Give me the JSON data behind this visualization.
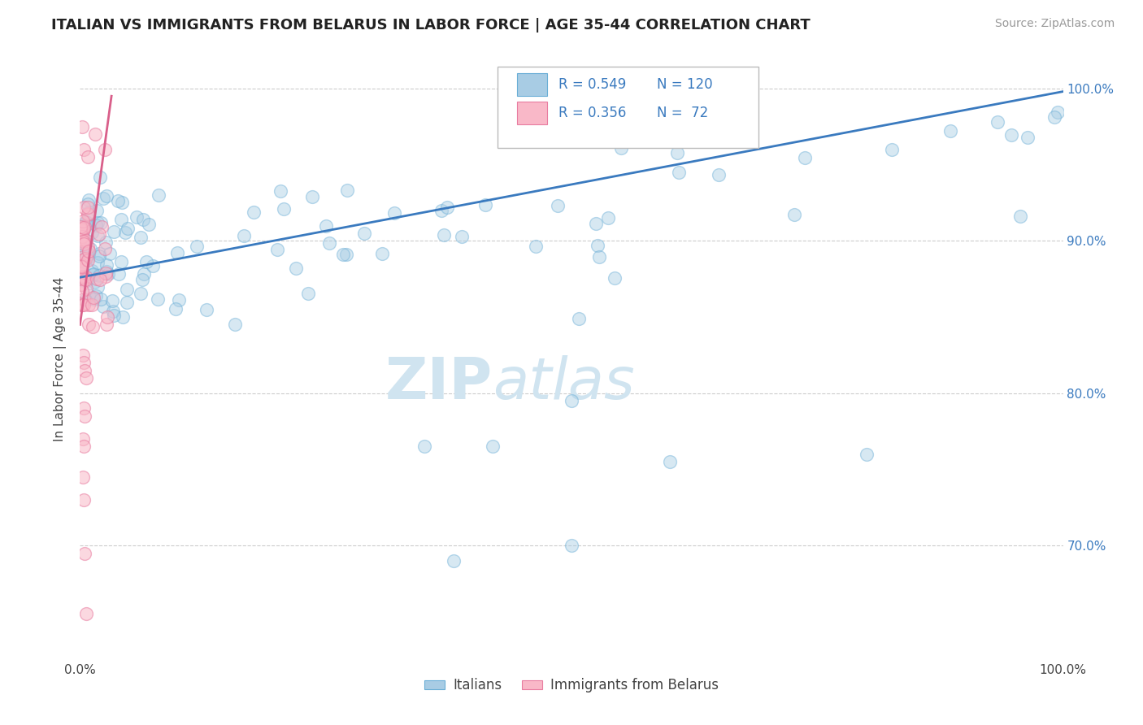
{
  "title": "ITALIAN VS IMMIGRANTS FROM BELARUS IN LABOR FORCE | AGE 35-44 CORRELATION CHART",
  "source": "Source: ZipAtlas.com",
  "ylabel": "In Labor Force | Age 35-44",
  "legend_label_blue": "Italians",
  "legend_label_pink": "Immigrants from Belarus",
  "legend_r_blue": "R = 0.549",
  "legend_n_blue": "N = 120",
  "legend_r_pink": "R = 0.356",
  "legend_n_pink": "N =  72",
  "blue_color": "#a8cce4",
  "blue_edge_color": "#6aaed6",
  "blue_line_color": "#3a7abf",
  "pink_color": "#f9b8c8",
  "pink_edge_color": "#e87ca0",
  "pink_line_color": "#d95f8a",
  "legend_text_color": "#3a7abf",
  "watermark_zip": "ZIP",
  "watermark_atlas": "atlas",
  "background_color": "#ffffff",
  "xlim": [
    0.0,
    1.0
  ],
  "ylim": [
    0.625,
    1.02
  ],
  "y_ticks": [
    0.7,
    0.8,
    0.9,
    1.0
  ],
  "y_tick_labels": [
    "70.0%",
    "80.0%",
    "90.0%",
    "100.0%"
  ],
  "x_ticks": [
    0.0,
    1.0
  ],
  "x_tick_labels": [
    "0.0%",
    "100.0%"
  ],
  "grid_color": "#cccccc",
  "title_fontsize": 13,
  "source_fontsize": 10,
  "watermark_color": "#d0e4f0",
  "watermark_fontsize": 52,
  "tick_fontsize": 11,
  "right_tick_color": "#3a7abf",
  "scatter_size": 130,
  "scatter_alpha_blue": 0.45,
  "scatter_alpha_pink": 0.55,
  "blue_trend_x0": 0.0,
  "blue_trend_x1": 1.0,
  "blue_trend_y0": 0.876,
  "blue_trend_y1": 0.998,
  "pink_trend_x0": 0.0,
  "pink_trend_x1": 0.032,
  "pink_trend_y0": 0.845,
  "pink_trend_y1": 0.995
}
